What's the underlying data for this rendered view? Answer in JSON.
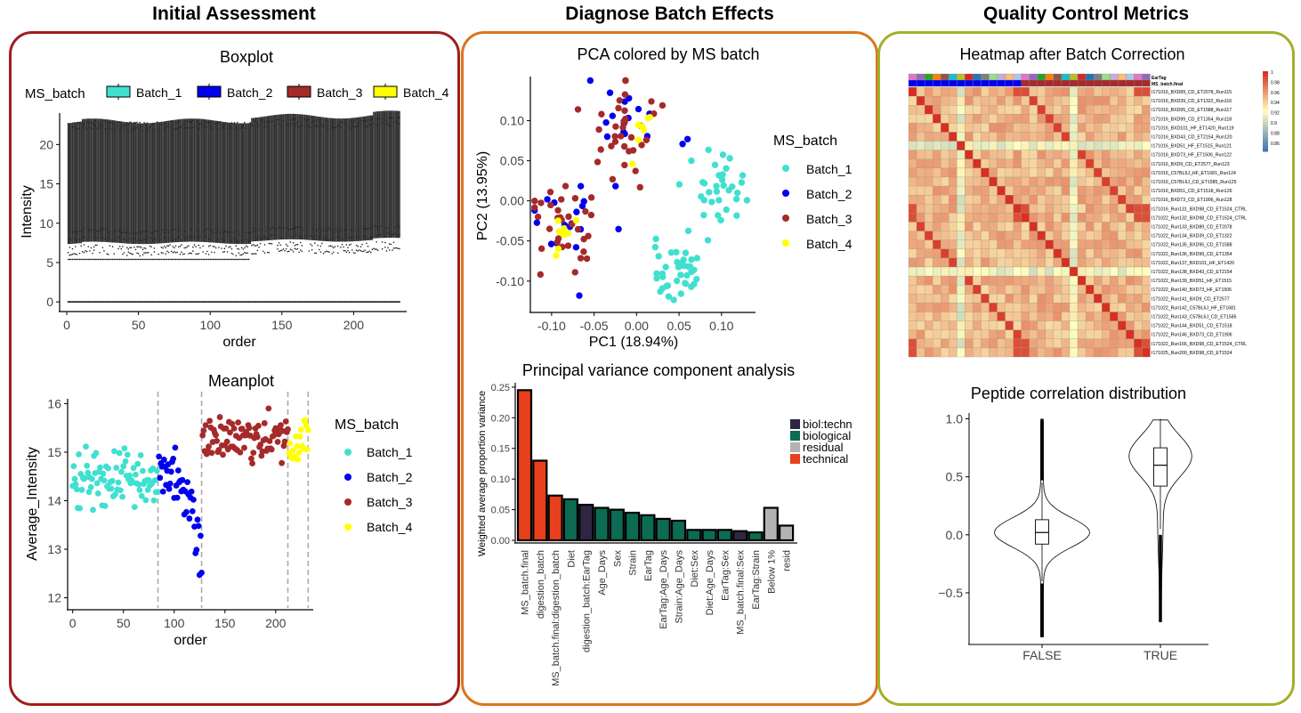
{
  "columns": [
    {
      "title": "Initial Assessment",
      "border": "#a11d1d"
    },
    {
      "title": "Diagnose Batch Effects",
      "border": "#d9771e"
    },
    {
      "title": "Quality Control Metrics",
      "border": "#a4b02c"
    }
  ],
  "colors": {
    "Batch_1": "#40e0d0",
    "Batch_2": "#0000ee",
    "Batch_3": "#a52a2a",
    "Batch_4": "#ffff00",
    "technical": "#e8401c",
    "biological": "#0c6b52",
    "biol_techn": "#2f2742",
    "residual": "#b3b3b3",
    "box_fill": "#333333",
    "heat_high": "#d7301f",
    "heat_mid": "#ffffbf",
    "heat_low": "#4575b4"
  },
  "chart_data": [
    {
      "id": "boxplot",
      "type": "box",
      "title": "Boxplot",
      "xlabel": "order",
      "ylabel": "Intensity",
      "legend_title": "MS_batch",
      "legend": [
        "Batch_1",
        "Batch_2",
        "Batch_3",
        "Batch_4"
      ],
      "xlim": [
        -5,
        237
      ],
      "ylim": [
        -1,
        24
      ],
      "xticks": [
        0,
        50,
        100,
        150,
        200
      ],
      "yticks": [
        0,
        5,
        10,
        15,
        20
      ],
      "n_samples": 232,
      "batch_breaks": [
        84,
        127,
        212
      ],
      "summary": {
        "q1": 12,
        "q3": 19,
        "whisker_low": 7.5,
        "whisker_high": 21.5,
        "outlier_floor": 0,
        "max": 23
      }
    },
    {
      "id": "meanplot",
      "type": "scatter",
      "title": "Meanplot",
      "xlabel": "order",
      "ylabel": "Average_Intensity",
      "legend_title": "MS_batch",
      "legend": [
        "Batch_1",
        "Batch_2",
        "Batch_3",
        "Batch_4"
      ],
      "xlim": [
        -5,
        237
      ],
      "ylim": [
        11.9,
        16.1
      ],
      "xticks": [
        0,
        50,
        100,
        150,
        200
      ],
      "yticks": [
        12,
        13,
        14,
        15,
        16
      ],
      "vlines": [
        84,
        127,
        212,
        232
      ],
      "batches": [
        {
          "name": "Batch_1",
          "x_range": [
            0,
            84
          ],
          "mean": 14.4,
          "sd": 0.28
        },
        {
          "name": "Batch_2",
          "x_range": [
            85,
            127
          ],
          "mean": 14.5,
          "sd": 0.55
        },
        {
          "name": "Batch_3",
          "x_range": [
            128,
            212
          ],
          "mean": 15.3,
          "sd": 0.25
        },
        {
          "name": "Batch_4",
          "x_range": [
            213,
            232
          ],
          "mean": 15.2,
          "sd": 0.25
        }
      ]
    },
    {
      "id": "pca",
      "type": "scatter",
      "title": "PCA colored by MS batch",
      "xlabel": "PC1 (18.94%)",
      "ylabel": "PC2 (13.95%)",
      "legend_title": "MS_batch",
      "legend": [
        "Batch_1",
        "Batch_2",
        "Batch_3",
        "Batch_4"
      ],
      "xlim": [
        -0.125,
        0.14
      ],
      "ylim": [
        -0.138,
        0.155
      ],
      "xticks": [
        -0.1,
        -0.05,
        0.0,
        0.05,
        0.1
      ],
      "xtick_labels": [
        "-0.10",
        "-0.05",
        "0.00",
        "0.05",
        "0.10"
      ],
      "yticks": [
        -0.1,
        -0.05,
        0.0,
        0.05,
        0.1
      ],
      "ytick_labels": [
        "-0.10",
        "-0.05",
        "0.00",
        "0.05",
        "0.10"
      ],
      "clusters": [
        {
          "name": "Batch_1",
          "cx": 0.05,
          "cy": -0.085,
          "sx": 0.022,
          "sy": 0.018,
          "n": 40
        },
        {
          "name": "Batch_1",
          "cx": 0.095,
          "cy": 0.01,
          "sx": 0.018,
          "sy": 0.02,
          "n": 32
        },
        {
          "name": "Batch_2",
          "cx": -0.01,
          "cy": 0.1,
          "sx": 0.025,
          "sy": 0.022,
          "n": 16
        },
        {
          "name": "Batch_2",
          "cx": -0.07,
          "cy": -0.03,
          "sx": 0.028,
          "sy": 0.03,
          "n": 18
        },
        {
          "name": "Batch_3",
          "cx": -0.015,
          "cy": 0.085,
          "sx": 0.02,
          "sy": 0.028,
          "n": 34
        },
        {
          "name": "Batch_3",
          "cx": -0.085,
          "cy": -0.035,
          "sx": 0.02,
          "sy": 0.03,
          "n": 32
        },
        {
          "name": "Batch_4",
          "cx": -0.09,
          "cy": -0.045,
          "sx": 0.012,
          "sy": 0.012,
          "n": 9
        },
        {
          "name": "Batch_4",
          "cx": 0.0,
          "cy": 0.09,
          "sx": 0.015,
          "sy": 0.025,
          "n": 7
        }
      ]
    },
    {
      "id": "pvca",
      "type": "bar",
      "title": "Principal variance component analysis",
      "ylabel": "Weighted average proportion variance",
      "ylim": [
        0,
        0.26
      ],
      "yticks": [
        0,
        0.05,
        0.1,
        0.15,
        0.2,
        0.25
      ],
      "ytick_labels": [
        "0.00",
        "0.05",
        "0.10",
        "0.15",
        "0.20",
        "0.25"
      ],
      "legend": [
        {
          "label": "biol:techn",
          "key": "biol_techn"
        },
        {
          "label": "biological",
          "key": "biological"
        },
        {
          "label": "residual",
          "key": "residual"
        },
        {
          "label": "technical",
          "key": "technical"
        }
      ],
      "categories": [
        "MS_batch.final",
        "digestion_batch",
        "MS_batch.final:digestion_batch",
        "Diet",
        "digestion_batch:EarTag",
        "Age_Days",
        "Sex",
        "Strain",
        "EarTag",
        "EarTag:Age_Days",
        "Strain:Age_Days",
        "Diet:Sex",
        "Diet:Age_Days",
        "EarTag:Sex",
        "MS_batch.final:Sex",
        "EarTag:Strain",
        "Below 1%",
        "resid"
      ],
      "values": [
        0.245,
        0.13,
        0.073,
        0.067,
        0.058,
        0.053,
        0.05,
        0.045,
        0.041,
        0.035,
        0.032,
        0.017,
        0.017,
        0.017,
        0.015,
        0.013,
        0.053,
        0.024
      ],
      "groups": [
        "technical",
        "technical",
        "technical",
        "biological",
        "biol_techn",
        "biological",
        "biological",
        "biological",
        "biological",
        "biological",
        "biological",
        "biological",
        "biological",
        "biological",
        "biol_techn",
        "biological",
        "residual",
        "residual"
      ]
    },
    {
      "id": "heatmap",
      "type": "heatmap",
      "title": "Heatmap after Batch Correction",
      "annotation_labels": [
        "EarTag",
        "MS_batch.final"
      ],
      "scale_ticks": [
        "1",
        "0.98",
        "0.96",
        "0.94",
        "0.92",
        "0.9",
        "0.88",
        "0.86"
      ],
      "row_labels": [
        "I171016_BXD89_CD_ET2078_Run115",
        "I171016_BXD39_CD_ET1322_Run116",
        "I171016_BXD95_CD_ET1588_Run117",
        "I171016_BXD99_CD_ET1354_Run118",
        "I171016_BXD101_HF_ET1420_Run119",
        "I171016_BXD43_CD_ET2154_Run120",
        "I171016_BXD51_HF_ET1515_Run121",
        "I171016_BXD73_HF_ET1506_Run122",
        "I171016_BXD9_CD_ET2577_Run123",
        "I171016_C57BL6J_HF_ET1681_Run124",
        "I171016_C57BL6J_CD_ET1585_Run125",
        "I171016_BXD51_CD_ET1518_Run126",
        "I171016_BXD73_CD_ET1906_Run128",
        "I171016_Run131_BXD98_CD_ET1524_CTRL",
        "I171022_Run132_BXD98_CD_ET1524_CTRL",
        "I171022_Run133_BXD89_CD_ET2078",
        "I171022_Run134_BXD39_CD_ET1322",
        "I171022_Run135_BXD95_CD_ET1588",
        "I171022_Run136_BXD99_CD_ET1354",
        "I171022_Run137_BXD101_HF_ET1420",
        "I171022_Run138_BXD43_CD_ET2154",
        "I171022_Run139_BXD51_HF_ET1515",
        "I171022_Run140_BXD73_HF_ET1506",
        "I171022_Run141_BXD9_CD_ET2577",
        "I171022_Run142_C57BL6J_HF_ET1681",
        "I171022_Run143_C57BL6J_CD_ET1585",
        "I171022_Run144_BXD51_CD_ET1518",
        "I171022_Run146_BXD73_CD_ET1906",
        "I171022_Run166_BXD98_CD_ET1524_CTRL",
        "I171025_Run200_BXD98_CD_ET1524"
      ],
      "range": [
        0.86,
        1
      ]
    },
    {
      "id": "violin",
      "type": "violin",
      "title": "Peptide correlation distribution",
      "categories": [
        "FALSE",
        "TRUE"
      ],
      "ylim": [
        -0.93,
        1.05
      ],
      "yticks": [
        -0.5,
        0.0,
        0.5,
        1.0
      ],
      "ytick_labels": [
        "−0.5",
        "0.0",
        "0.5",
        "1.0"
      ],
      "boxes": [
        {
          "q1": -0.08,
          "median": 0.02,
          "q3": 0.13,
          "lo": -0.4,
          "hi": 0.45,
          "min": -0.88,
          "max": 1.0
        },
        {
          "q1": 0.42,
          "median": 0.6,
          "q3": 0.75,
          "lo": 0.05,
          "hi": 1.0,
          "min": -0.75,
          "max": 1.0
        }
      ]
    }
  ]
}
